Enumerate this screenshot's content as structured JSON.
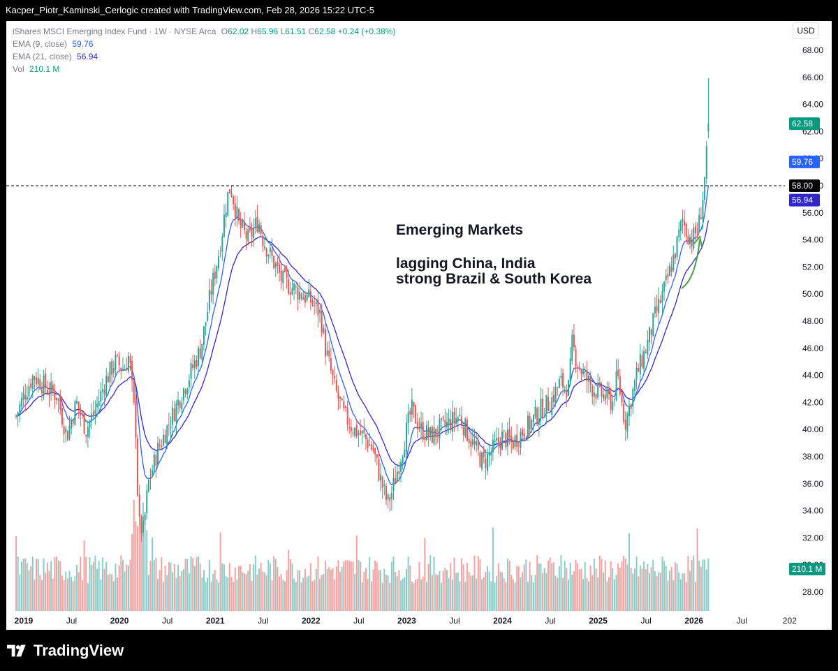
{
  "header": {
    "text": "Kacper_Piotr_Kaminski_Cerlogic created with TradingView.com, Feb 28, 2026 15:22 UTC-5"
  },
  "legend": {
    "symbol": "iShares MSCI Emerging Index Fund · 1W · NYSE Arca",
    "o_label": "O",
    "o": "62.02",
    "h_label": "H",
    "h": "65.96",
    "l_label": "L",
    "l": "61.51",
    "c_label": "C",
    "c": "62.58",
    "change": "+0.24 (+0.38%)",
    "ema9_label": "EMA (9, close)",
    "ema9": "59.76",
    "ema21_label": "EMA (21, close)",
    "ema21": "56.94",
    "vol_label": "Vol",
    "vol": "210.1 M"
  },
  "currency_button": "USD",
  "annotation": {
    "line1": "Emerging Markets",
    "line2": "lagging China, India",
    "line3": "strong Brazil & South Korea"
  },
  "footer": {
    "brand": "TradingView"
  },
  "colors": {
    "up": "#26a69a",
    "down": "#ef5350",
    "ema9": "#2962ff",
    "ema21": "#3126c8",
    "arrow": "#43a047"
  },
  "chart_data": {
    "type": "candlestick",
    "title": "iShares MSCI Emerging Index Fund · 1W · NYSE Arca",
    "y_axis_ticks": [
      "68.00",
      "66.00",
      "64.00",
      "62.00",
      "60.00",
      "58.00",
      "56.00",
      "54.00",
      "52.00",
      "50.00",
      "48.00",
      "46.00",
      "44.00",
      "42.00",
      "40.00",
      "38.00",
      "36.00",
      "34.00",
      "32.00",
      "30.00",
      "28.00"
    ],
    "ylim": [
      27,
      69
    ],
    "x_axis_ticks": [
      "2019",
      "Jul",
      "2020",
      "Jul",
      "2021",
      "Jul",
      "2022",
      "Jul",
      "2023",
      "Jul",
      "2024",
      "Jul",
      "2025",
      "Jul",
      "2026",
      "Jul",
      "202"
    ],
    "xlim": [
      2018.92,
      2026.98
    ],
    "price_labels": [
      {
        "name": "last",
        "value": "62.58",
        "color": "#089981"
      },
      {
        "name": "ema9",
        "value": "59.76",
        "color": "#2962ff"
      },
      {
        "name": "ema21",
        "value": "56.94",
        "color": "#3126c8"
      },
      {
        "name": "level",
        "value": "58.00",
        "color": "#000000"
      },
      {
        "name": "volume",
        "value": "210.1 M",
        "color": "#089981"
      }
    ],
    "horizontal_line": {
      "value": 58.0,
      "style": "dashed"
    },
    "price_path": [
      [
        2018.92,
        41.0
      ],
      [
        2019.0,
        42.5
      ],
      [
        2019.1,
        44.0
      ],
      [
        2019.25,
        43.0
      ],
      [
        2019.35,
        42.5
      ],
      [
        2019.45,
        39.5
      ],
      [
        2019.55,
        42.0
      ],
      [
        2019.65,
        40.0
      ],
      [
        2019.75,
        41.5
      ],
      [
        2019.85,
        43.5
      ],
      [
        2019.95,
        45.0
      ],
      [
        2020.05,
        44.5
      ],
      [
        2020.1,
        45.5
      ],
      [
        2020.17,
        40.0
      ],
      [
        2020.2,
        33.0
      ],
      [
        2020.25,
        32.5
      ],
      [
        2020.3,
        36.0
      ],
      [
        2020.4,
        38.5
      ],
      [
        2020.55,
        41.0
      ],
      [
        2020.7,
        43.5
      ],
      [
        2020.85,
        46.0
      ],
      [
        2020.95,
        50.0
      ],
      [
        2021.05,
        53.5
      ],
      [
        2021.12,
        57.0
      ],
      [
        2021.16,
        58.0
      ],
      [
        2021.25,
        55.0
      ],
      [
        2021.35,
        54.0
      ],
      [
        2021.45,
        55.5
      ],
      [
        2021.5,
        54.0
      ],
      [
        2021.6,
        52.5
      ],
      [
        2021.7,
        51.0
      ],
      [
        2021.8,
        50.5
      ],
      [
        2021.9,
        50.0
      ],
      [
        2022.0,
        49.5
      ],
      [
        2022.1,
        48.5
      ],
      [
        2022.15,
        46.0
      ],
      [
        2022.25,
        43.0
      ],
      [
        2022.35,
        41.0
      ],
      [
        2022.45,
        40.0
      ],
      [
        2022.55,
        39.5
      ],
      [
        2022.65,
        38.5
      ],
      [
        2022.72,
        36.5
      ],
      [
        2022.8,
        34.5
      ],
      [
        2022.85,
        35.5
      ],
      [
        2022.92,
        37.5
      ],
      [
        2023.0,
        40.0
      ],
      [
        2023.05,
        41.5
      ],
      [
        2023.15,
        40.0
      ],
      [
        2023.25,
        39.5
      ],
      [
        2023.35,
        40.0
      ],
      [
        2023.45,
        40.5
      ],
      [
        2023.55,
        41.0
      ],
      [
        2023.65,
        39.5
      ],
      [
        2023.72,
        38.5
      ],
      [
        2023.8,
        37.5
      ],
      [
        2023.9,
        38.5
      ],
      [
        2024.0,
        39.5
      ],
      [
        2024.1,
        39.0
      ],
      [
        2024.2,
        39.8
      ],
      [
        2024.3,
        40.5
      ],
      [
        2024.4,
        41.5
      ],
      [
        2024.5,
        42.0
      ],
      [
        2024.6,
        43.5
      ],
      [
        2024.7,
        43.0
      ],
      [
        2024.72,
        46.5
      ],
      [
        2024.78,
        45.0
      ],
      [
        2024.85,
        44.0
      ],
      [
        2024.95,
        43.0
      ],
      [
        2025.05,
        42.5
      ],
      [
        2025.15,
        42.0
      ],
      [
        2025.2,
        44.0
      ],
      [
        2025.28,
        40.5
      ],
      [
        2025.32,
        41.5
      ],
      [
        2025.4,
        44.0
      ],
      [
        2025.5,
        46.0
      ],
      [
        2025.6,
        48.5
      ],
      [
        2025.7,
        50.5
      ],
      [
        2025.8,
        53.0
      ],
      [
        2025.88,
        55.5
      ],
      [
        2025.93,
        54.5
      ],
      [
        2025.98,
        54.0
      ],
      [
        2026.05,
        55.0
      ],
      [
        2026.1,
        57.5
      ],
      [
        2026.13,
        60.0
      ],
      [
        2026.16,
        62.58
      ]
    ],
    "ema9_last": 59.76,
    "ema21_last": 56.94,
    "last_candle": {
      "o": 62.02,
      "h": 65.96,
      "l": 61.51,
      "c": 62.58
    },
    "last_volume": "210.1 M"
  }
}
